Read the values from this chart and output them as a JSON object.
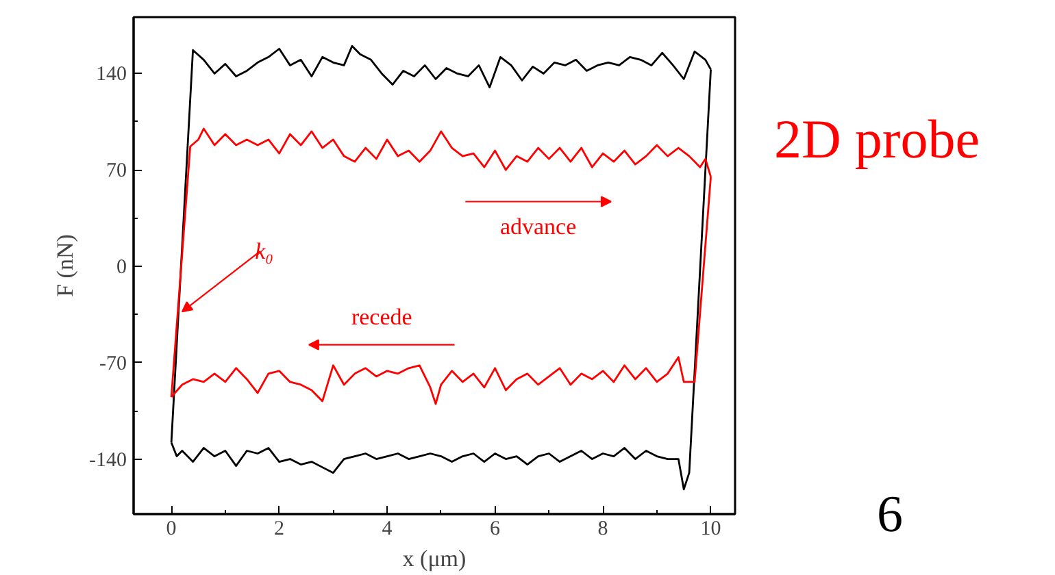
{
  "chart_data": {
    "type": "line",
    "xlabel": "x (μm)",
    "ylabel": "F (nN)",
    "xlim": [
      -0.7,
      10.45
    ],
    "ylim": [
      -180,
      181
    ],
    "xticks": [
      0,
      2,
      4,
      6,
      8,
      10
    ],
    "yticks": [
      -140,
      -70,
      0,
      70,
      140
    ],
    "grid": false,
    "marker": "none",
    "line_style": "solid",
    "series": [
      {
        "color": "#000000",
        "x": [
          0,
          0.1,
          0.2,
          0.4,
          0.6,
          0.8,
          1.0,
          1.2,
          1.4,
          1.6,
          1.8,
          2.0,
          2.2,
          2.4,
          2.6,
          2.8,
          3.0,
          3.2,
          3.4,
          3.6,
          3.8,
          4.0,
          4.2,
          4.4,
          4.6,
          4.8,
          5.0,
          5.2,
          5.4,
          5.6,
          5.8,
          6.0,
          6.2,
          6.4,
          6.6,
          6.8,
          7.0,
          7.2,
          7.4,
          7.6,
          7.8,
          8.0,
          8.2,
          8.4,
          8.6,
          8.8,
          9.0,
          9.2,
          9.4,
          9.5,
          9.6,
          10.0,
          null,
          0,
          0.4,
          0.6,
          0.8,
          1.0,
          1.2,
          1.4,
          1.6,
          1.8,
          2.0,
          2.2,
          2.4,
          2.6,
          2.8,
          3.0,
          3.2,
          3.35,
          3.5,
          3.7,
          3.9,
          4.1,
          4.3,
          4.5,
          4.7,
          4.9,
          5.1,
          5.3,
          5.5,
          5.7,
          5.9,
          6.1,
          6.3,
          6.5,
          6.7,
          6.9,
          7.1,
          7.3,
          7.5,
          7.7,
          7.9,
          8.1,
          8.3,
          8.5,
          8.7,
          8.9,
          9.1,
          9.3,
          9.5,
          9.7,
          9.9,
          10.0
        ],
        "values": [
          -128,
          -138,
          -134,
          -142,
          -132,
          -138,
          -134,
          -145,
          -134,
          -136,
          -132,
          -142,
          -140,
          -144,
          -142,
          -146,
          -150,
          -140,
          -138,
          -136,
          -140,
          -138,
          -136,
          -140,
          -138,
          -136,
          -138,
          -142,
          -138,
          -136,
          -142,
          -136,
          -140,
          -138,
          -144,
          -138,
          -136,
          -142,
          -138,
          -134,
          -140,
          -136,
          -138,
          -132,
          -140,
          -134,
          -138,
          -140,
          -140,
          -162,
          -150,
          143,
          null,
          -128,
          157,
          150,
          140,
          147,
          138,
          142,
          148,
          152,
          158,
          146,
          150,
          138,
          152,
          148,
          146,
          160,
          154,
          150,
          140,
          132,
          142,
          138,
          146,
          136,
          144,
          140,
          138,
          146,
          130,
          152,
          146,
          135,
          145,
          140,
          148,
          146,
          150,
          142,
          146,
          148,
          146,
          152,
          150,
          146,
          155,
          146,
          136,
          156,
          150,
          143
        ]
      },
      {
        "color": "#ff0000",
        "x": [
          0,
          0.35,
          0.5,
          0.6,
          0.8,
          1.0,
          1.2,
          1.4,
          1.6,
          1.8,
          2.0,
          2.2,
          2.4,
          2.6,
          2.8,
          3.0,
          3.2,
          3.4,
          3.6,
          3.8,
          4.0,
          4.2,
          4.4,
          4.6,
          4.8,
          5.0,
          5.2,
          5.4,
          5.6,
          5.8,
          6.0,
          6.2,
          6.4,
          6.6,
          6.8,
          7.0,
          7.2,
          7.4,
          7.6,
          7.8,
          8.0,
          8.2,
          8.4,
          8.6,
          8.8,
          9.0,
          9.2,
          9.4,
          9.6,
          9.8,
          9.9,
          10.0,
          null,
          0,
          0.2,
          0.4,
          0.6,
          0.8,
          1.0,
          1.2,
          1.4,
          1.6,
          1.8,
          2.0,
          2.2,
          2.4,
          2.6,
          2.8,
          3.0,
          3.2,
          3.4,
          3.6,
          3.8,
          4.0,
          4.2,
          4.4,
          4.6,
          4.8,
          4.9,
          5.0,
          5.2,
          5.4,
          5.6,
          5.8,
          6.0,
          6.2,
          6.4,
          6.6,
          6.8,
          7.0,
          7.2,
          7.4,
          7.6,
          7.8,
          8.0,
          8.2,
          8.4,
          8.6,
          8.8,
          9.0,
          9.2,
          9.4,
          9.5,
          9.7,
          10.0
        ],
        "values": [
          -95,
          87,
          92,
          100,
          88,
          96,
          88,
          92,
          88,
          92,
          82,
          96,
          88,
          98,
          86,
          92,
          80,
          76,
          86,
          78,
          92,
          80,
          84,
          76,
          84,
          98,
          86,
          80,
          82,
          72,
          84,
          70,
          80,
          76,
          86,
          78,
          86,
          76,
          86,
          72,
          82,
          76,
          84,
          74,
          80,
          88,
          80,
          86,
          80,
          72,
          78,
          65,
          null,
          -95,
          -86,
          -82,
          -84,
          -78,
          -84,
          -74,
          -82,
          -92,
          -78,
          -76,
          -84,
          -86,
          -90,
          -98,
          -72,
          -86,
          -78,
          -74,
          -80,
          -76,
          -78,
          -74,
          -72,
          -88,
          -100,
          -86,
          -76,
          -84,
          -78,
          -88,
          -74,
          -90,
          -82,
          -78,
          -86,
          -80,
          -74,
          -86,
          -78,
          -82,
          -76,
          -84,
          -72,
          -82,
          -74,
          -84,
          -78,
          -66,
          -84,
          -84,
          65
        ]
      }
    ],
    "annotations": [
      {
        "text": "k₀",
        "x": 0.2,
        "y": -33
      },
      "advance",
      "recede",
      "2D probe",
      "6"
    ]
  }
}
